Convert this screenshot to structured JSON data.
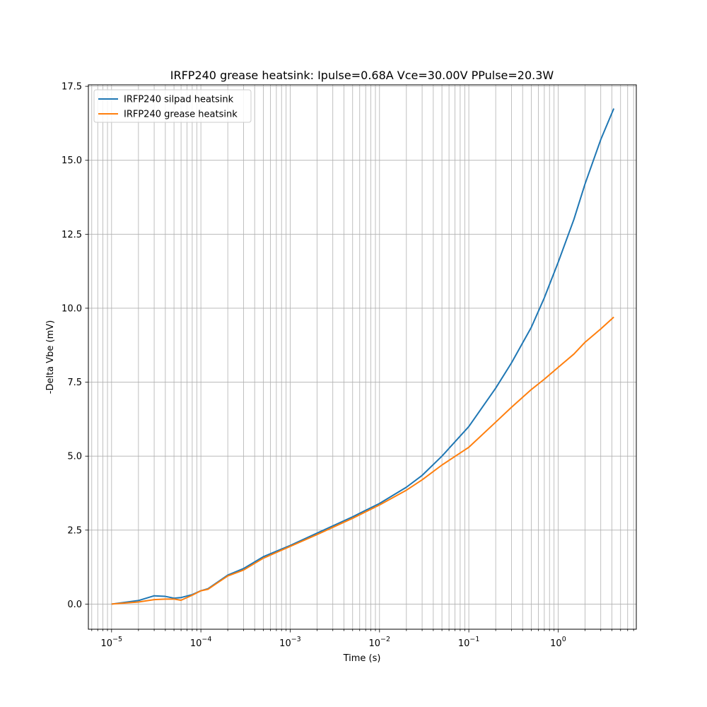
{
  "chart_data": {
    "type": "line",
    "title": "IRFP240 grease heatsink: Ipulse=0.68A Vce=30.00V PPulse=20.3W",
    "xlabel": "Time (s)",
    "ylabel": "-Delta Vbe (mV)",
    "xscale": "log",
    "xlim": [
      5.5e-06,
      7.5
    ],
    "ylim": [
      -0.85,
      17.55
    ],
    "grid": "both-major-and-minor",
    "legend_position": "top-left",
    "x_ticks": [
      1e-05,
      0.0001,
      0.001,
      0.01,
      0.1,
      1
    ],
    "x_tick_labels": [
      {
        "base": "10",
        "exp": "−5"
      },
      {
        "base": "10",
        "exp": "−4"
      },
      {
        "base": "10",
        "exp": "−3"
      },
      {
        "base": "10",
        "exp": "−2"
      },
      {
        "base": "10",
        "exp": "−1"
      },
      {
        "base": "10",
        "exp": "0"
      }
    ],
    "y_ticks": [
      0.0,
      2.5,
      5.0,
      7.5,
      10.0,
      12.5,
      15.0,
      17.5
    ],
    "y_tick_labels": [
      "0.0",
      "2.5",
      "5.0",
      "7.5",
      "10.0",
      "12.5",
      "15.0",
      "17.5"
    ],
    "series": [
      {
        "name": "IRFP240 silpad heatsink",
        "color": "#1f77b4",
        "x": [
          1e-05,
          2e-05,
          3e-05,
          4e-05,
          5e-05,
          6e-05,
          8e-05,
          0.0001,
          0.00012,
          0.00015,
          0.0002,
          0.0003,
          0.0005,
          0.001,
          0.002,
          0.005,
          0.01,
          0.02,
          0.03,
          0.05,
          0.1,
          0.2,
          0.3,
          0.5,
          0.7,
          1.0,
          1.5,
          2.0,
          3.0,
          4.2
        ],
        "y": [
          0.0,
          0.12,
          0.28,
          0.26,
          0.2,
          0.22,
          0.32,
          0.45,
          0.52,
          0.72,
          0.98,
          1.2,
          1.6,
          1.98,
          2.4,
          2.95,
          3.4,
          3.95,
          4.35,
          5.0,
          6.0,
          7.3,
          8.15,
          9.35,
          10.35,
          11.55,
          13.0,
          14.2,
          15.7,
          16.75
        ]
      },
      {
        "name": "IRFP240 grease heatsink",
        "color": "#ff7f0e",
        "x": [
          1e-05,
          2e-05,
          3e-05,
          4e-05,
          5e-05,
          6e-05,
          8e-05,
          0.0001,
          0.00012,
          0.00015,
          0.0002,
          0.0003,
          0.0005,
          0.001,
          0.002,
          0.005,
          0.01,
          0.02,
          0.03,
          0.05,
          0.1,
          0.2,
          0.3,
          0.5,
          0.7,
          1.0,
          1.5,
          2.0,
          3.0,
          4.2
        ],
        "y": [
          0.0,
          0.07,
          0.15,
          0.17,
          0.17,
          0.13,
          0.3,
          0.45,
          0.5,
          0.7,
          0.95,
          1.15,
          1.55,
          1.95,
          2.35,
          2.9,
          3.35,
          3.85,
          4.2,
          4.7,
          5.3,
          6.15,
          6.65,
          7.25,
          7.6,
          8.0,
          8.45,
          8.85,
          9.3,
          9.7
        ]
      }
    ]
  }
}
